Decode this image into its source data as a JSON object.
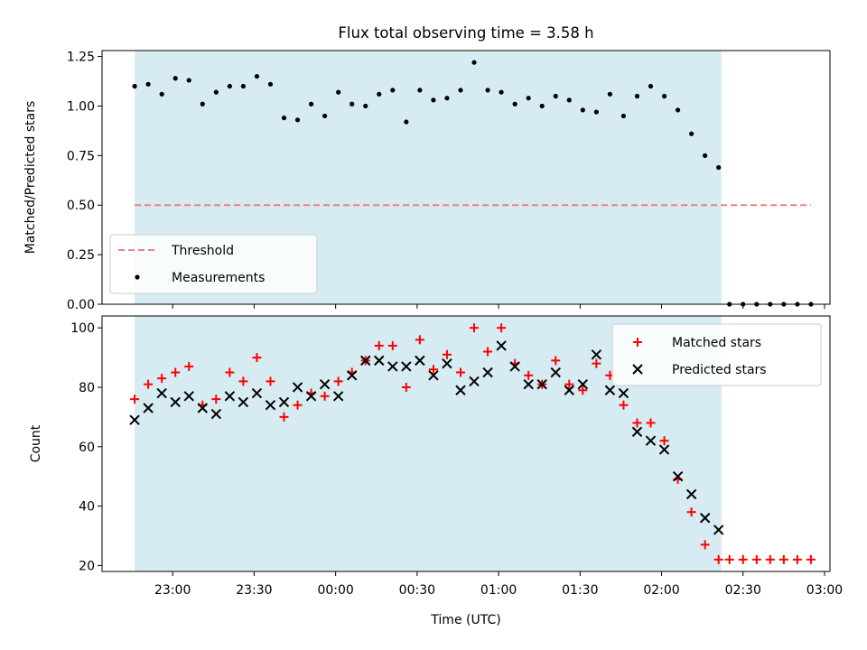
{
  "title": "Flux total observing time = 3.58 h",
  "xlabel": "Time (UTC)",
  "colors": {
    "shade": "#add8e6",
    "threshold": "#f08080",
    "matched": "#ff0000",
    "predicted": "#000000",
    "measurement": "#000000"
  },
  "x_ticks": [
    "23:00",
    "23:30",
    "00:00",
    "00:30",
    "01:00",
    "01:30",
    "02:00",
    "02:30",
    "03:00"
  ],
  "chart_data": [
    {
      "type": "scatter",
      "panel": "top",
      "ylabel": "Matched/Predicted stars",
      "ylim": [
        0,
        1.28
      ],
      "y_ticks": [
        "0.00",
        "0.25",
        "0.50",
        "0.75",
        "1.00",
        "1.25"
      ],
      "x_unit": "minutes after 22:00 UTC",
      "xlim": [
        34,
        302
      ],
      "shaded_interval": [
        "22:46",
        "02:22"
      ],
      "threshold": {
        "name": "Threshold",
        "value": 0.5,
        "x_range": [
          "22:46",
          "02:55"
        ]
      },
      "legend": [
        "Threshold",
        "Measurements"
      ],
      "legend_position": "lower-left",
      "series": [
        {
          "name": "Measurements",
          "marker": "dot",
          "x": [
            "22:46",
            "22:51",
            "22:56",
            "23:01",
            "23:06",
            "23:11",
            "23:16",
            "23:21",
            "23:26",
            "23:31",
            "23:36",
            "23:41",
            "23:46",
            "23:51",
            "23:56",
            "00:01",
            "00:06",
            "00:11",
            "00:16",
            "00:21",
            "00:26",
            "00:31",
            "00:36",
            "00:41",
            "00:46",
            "00:51",
            "00:56",
            "01:01",
            "01:06",
            "01:11",
            "01:16",
            "01:21",
            "01:26",
            "01:31",
            "01:36",
            "01:41",
            "01:46",
            "01:51",
            "01:56",
            "02:01",
            "02:06",
            "02:11",
            "02:16",
            "02:21",
            "02:25",
            "02:30",
            "02:35",
            "02:40",
            "02:45",
            "02:50",
            "02:55"
          ],
          "y": [
            1.1,
            1.11,
            1.06,
            1.14,
            1.13,
            1.01,
            1.07,
            1.1,
            1.1,
            1.15,
            1.11,
            0.94,
            0.93,
            1.01,
            0.95,
            1.07,
            1.01,
            1.0,
            1.06,
            1.08,
            0.92,
            1.08,
            1.03,
            1.04,
            1.08,
            1.22,
            1.08,
            1.07,
            1.01,
            1.04,
            1.0,
            1.05,
            1.03,
            0.98,
            0.97,
            1.06,
            0.95,
            1.05,
            1.1,
            1.05,
            0.98,
            0.86,
            0.75,
            0.69,
            0.0,
            0.0,
            0.0,
            0.0,
            0.0,
            0.0,
            0.0
          ]
        }
      ]
    },
    {
      "type": "scatter",
      "panel": "bottom",
      "ylabel": "Count",
      "ylim": [
        18,
        104
      ],
      "y_ticks": [
        "20",
        "40",
        "60",
        "80",
        "100"
      ],
      "x_unit": "minutes after 22:00 UTC",
      "xlim": [
        34,
        302
      ],
      "shaded_interval": [
        "22:46",
        "02:22"
      ],
      "legend": [
        "Matched stars",
        "Predicted stars"
      ],
      "legend_position": "upper-right",
      "x_shared": [
        "22:46",
        "22:51",
        "22:56",
        "23:01",
        "23:06",
        "23:11",
        "23:16",
        "23:21",
        "23:26",
        "23:31",
        "23:36",
        "23:41",
        "23:46",
        "23:51",
        "23:56",
        "00:01",
        "00:06",
        "00:11",
        "00:16",
        "00:21",
        "00:26",
        "00:31",
        "00:36",
        "00:41",
        "00:46",
        "00:51",
        "00:56",
        "01:01",
        "01:06",
        "01:11",
        "01:16",
        "01:21",
        "01:26",
        "01:31",
        "01:36",
        "01:41",
        "01:46",
        "01:51",
        "01:56",
        "02:01",
        "02:06",
        "02:11",
        "02:16",
        "02:21",
        "02:25",
        "02:30",
        "02:35",
        "02:40",
        "02:45",
        "02:50",
        "02:55"
      ],
      "series": [
        {
          "name": "Matched stars",
          "marker": "plus",
          "y": [
            76,
            81,
            83,
            85,
            87,
            74,
            76,
            85,
            82,
            90,
            82,
            70,
            74,
            78,
            77,
            82,
            85,
            89,
            94,
            94,
            80,
            96,
            86,
            91,
            85,
            100,
            92,
            100,
            88,
            84,
            81,
            89,
            81,
            79,
            88,
            84,
            74,
            68,
            68,
            62,
            49,
            38,
            27,
            22,
            22,
            22,
            22,
            22,
            22,
            22,
            22
          ]
        },
        {
          "name": "Predicted stars",
          "marker": "x",
          "y": [
            69,
            73,
            78,
            75,
            77,
            73,
            71,
            77,
            75,
            78,
            74,
            75,
            80,
            77,
            81,
            77,
            84,
            89,
            89,
            87,
            87,
            89,
            84,
            88,
            79,
            82,
            85,
            94,
            87,
            81,
            81,
            85,
            79,
            81,
            91,
            79,
            78,
            65,
            62,
            59,
            50,
            44,
            36,
            32,
            null,
            null,
            null,
            null,
            null,
            null,
            null
          ]
        }
      ]
    }
  ]
}
